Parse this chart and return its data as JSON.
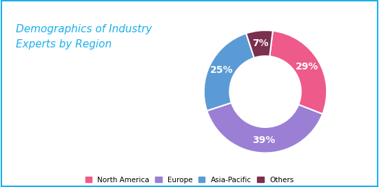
{
  "title": "Demographics of Industry\nExperts by Region",
  "title_color": "#1AAFED",
  "segments": [
    "North America",
    "Europe",
    "Asia-Pacific",
    "Others"
  ],
  "values": [
    29,
    39,
    25,
    7
  ],
  "colors": [
    "#EE5A8A",
    "#9B7FD4",
    "#5B9BD5",
    "#7B3050"
  ],
  "pct_labels": [
    "29%",
    "39%",
    "25%",
    "7%"
  ],
  "background_color": "#FFFFFF",
  "border_color": "#1AAFED",
  "legend_labels": [
    "North America",
    "Europe",
    "Asia-Pacific",
    "Others"
  ],
  "donut_width": 0.42,
  "startangle": 83
}
